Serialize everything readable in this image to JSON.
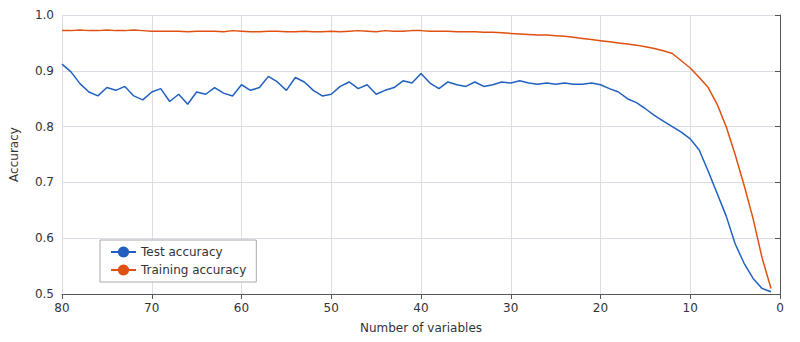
{
  "chart_data": {
    "type": "line",
    "xlabel": "Number of variables",
    "ylabel": "Accuracy",
    "x": [
      80,
      79,
      78,
      77,
      76,
      75,
      74,
      73,
      72,
      71,
      70,
      69,
      68,
      67,
      66,
      65,
      64,
      63,
      62,
      61,
      60,
      59,
      58,
      57,
      56,
      55,
      54,
      53,
      52,
      51,
      50,
      49,
      48,
      47,
      46,
      45,
      44,
      43,
      42,
      41,
      40,
      39,
      38,
      37,
      36,
      35,
      34,
      33,
      32,
      31,
      30,
      29,
      28,
      27,
      26,
      25,
      24,
      23,
      22,
      21,
      20,
      19,
      18,
      17,
      16,
      15,
      14,
      13,
      12,
      11,
      10,
      9,
      8,
      7,
      6,
      5,
      4,
      3,
      2,
      1
    ],
    "series": [
      {
        "name": "Test accuracy",
        "color": "#2060c0",
        "values": [
          0.912,
          0.898,
          0.877,
          0.862,
          0.855,
          0.87,
          0.865,
          0.872,
          0.855,
          0.848,
          0.862,
          0.868,
          0.845,
          0.858,
          0.84,
          0.862,
          0.858,
          0.87,
          0.86,
          0.855,
          0.875,
          0.865,
          0.87,
          0.89,
          0.88,
          0.865,
          0.888,
          0.88,
          0.865,
          0.855,
          0.858,
          0.872,
          0.88,
          0.868,
          0.875,
          0.858,
          0.865,
          0.87,
          0.882,
          0.878,
          0.895,
          0.878,
          0.868,
          0.88,
          0.875,
          0.872,
          0.88,
          0.872,
          0.875,
          0.88,
          0.878,
          0.882,
          0.878,
          0.876,
          0.878,
          0.876,
          0.878,
          0.876,
          0.876,
          0.878,
          0.875,
          0.868,
          0.862,
          0.85,
          0.843,
          0.832,
          0.82,
          0.81,
          0.8,
          0.79,
          0.778,
          0.758,
          0.72,
          0.68,
          0.64,
          0.59,
          0.555,
          0.528,
          0.51,
          0.504
        ]
      },
      {
        "name": "Training accuracy",
        "color": "#e05010",
        "values": [
          0.972,
          0.972,
          0.973,
          0.972,
          0.972,
          0.973,
          0.972,
          0.972,
          0.973,
          0.972,
          0.971,
          0.971,
          0.971,
          0.971,
          0.97,
          0.971,
          0.971,
          0.971,
          0.97,
          0.972,
          0.971,
          0.97,
          0.97,
          0.971,
          0.971,
          0.97,
          0.97,
          0.971,
          0.97,
          0.97,
          0.971,
          0.97,
          0.971,
          0.972,
          0.971,
          0.97,
          0.972,
          0.971,
          0.971,
          0.972,
          0.972,
          0.971,
          0.971,
          0.971,
          0.97,
          0.97,
          0.97,
          0.969,
          0.969,
          0.968,
          0.967,
          0.966,
          0.965,
          0.964,
          0.964,
          0.963,
          0.962,
          0.96,
          0.958,
          0.956,
          0.954,
          0.952,
          0.95,
          0.948,
          0.946,
          0.943,
          0.94,
          0.936,
          0.931,
          0.918,
          0.905,
          0.888,
          0.87,
          0.84,
          0.8,
          0.75,
          0.695,
          0.635,
          0.565,
          0.51
        ]
      }
    ],
    "xlim": [
      80,
      0
    ],
    "ylim": [
      0.5,
      1.0
    ],
    "xticks": [
      80,
      70,
      60,
      50,
      40,
      30,
      20,
      10,
      0
    ],
    "yticks": [
      0.5,
      0.6,
      0.7,
      0.8,
      0.9,
      {
        "value": 1.0,
        "label": "1.0"
      }
    ],
    "grid": true,
    "legend": "lower left"
  }
}
